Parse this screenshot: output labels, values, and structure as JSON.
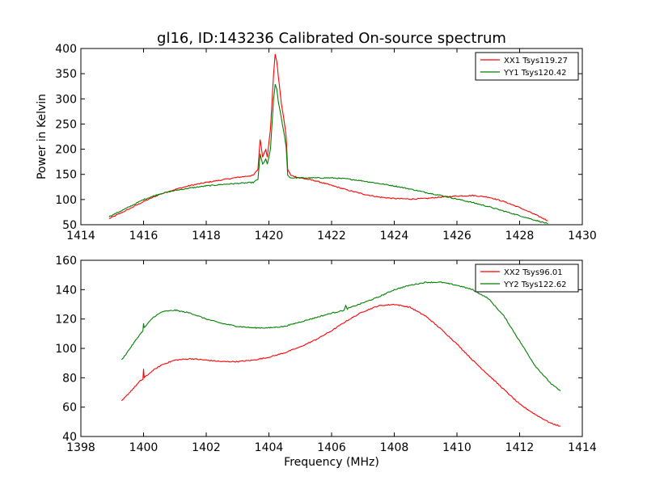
{
  "title": "gl16, ID:143236 Calibrated On-source spectrum",
  "chart_data": [
    {
      "type": "line",
      "title": "gl16, ID:143236 Calibrated On-source spectrum",
      "xlabel": "",
      "ylabel": "Power in Kelvin",
      "xlim": [
        1414,
        1430
      ],
      "ylim": [
        50,
        400
      ],
      "xticks": [
        1414,
        1416,
        1418,
        1420,
        1422,
        1424,
        1426,
        1428,
        1430
      ],
      "yticks": [
        50,
        100,
        150,
        200,
        250,
        300,
        350,
        400
      ],
      "legend_position": "top-right",
      "series": [
        {
          "name": "XX1 Tsys119.27",
          "color": "#ff0000",
          "x": [
            1414.9,
            1415.5,
            1416.0,
            1416.5,
            1417.0,
            1417.5,
            1418.0,
            1418.5,
            1419.0,
            1419.5,
            1419.65,
            1419.72,
            1419.8,
            1419.9,
            1419.95,
            1420.05,
            1420.15,
            1420.2,
            1420.25,
            1420.3,
            1420.4,
            1420.5,
            1420.55,
            1420.6,
            1420.7,
            1421.0,
            1421.5,
            1422.0,
            1422.5,
            1423.0,
            1423.5,
            1424.0,
            1424.5,
            1425.0,
            1425.5,
            1426.0,
            1426.5,
            1427.0,
            1427.5,
            1428.0,
            1428.5,
            1428.9
          ],
          "values": [
            62,
            80,
            96,
            110,
            120,
            128,
            134,
            139,
            144,
            148,
            160,
            220,
            185,
            200,
            185,
            240,
            350,
            388,
            375,
            345,
            290,
            250,
            225,
            160,
            148,
            143,
            137,
            128,
            119,
            111,
            105,
            102,
            101,
            102,
            105,
            107,
            108,
            105,
            96,
            84,
            70,
            58
          ]
        },
        {
          "name": "YY1 Tsys120.42",
          "color": "#008000",
          "x": [
            1414.9,
            1415.5,
            1416.0,
            1416.5,
            1417.0,
            1417.5,
            1418.0,
            1418.5,
            1419.0,
            1419.5,
            1419.65,
            1419.72,
            1419.8,
            1419.9,
            1419.95,
            1420.05,
            1420.15,
            1420.2,
            1420.25,
            1420.3,
            1420.4,
            1420.5,
            1420.55,
            1420.6,
            1420.7,
            1421.0,
            1421.5,
            1422.0,
            1422.5,
            1423.0,
            1423.5,
            1424.0,
            1424.5,
            1425.0,
            1425.5,
            1426.0,
            1426.5,
            1427.0,
            1427.5,
            1428.0,
            1428.5,
            1428.9
          ],
          "values": [
            66,
            84,
            100,
            111,
            118,
            123,
            127,
            130,
            132,
            134,
            140,
            190,
            170,
            180,
            170,
            200,
            300,
            328,
            320,
            295,
            260,
            225,
            205,
            148,
            143,
            143,
            143,
            143,
            141,
            137,
            132,
            127,
            121,
            114,
            108,
            101,
            94,
            86,
            77,
            68,
            59,
            52
          ]
        }
      ]
    },
    {
      "type": "line",
      "title": "",
      "xlabel": "Frequency (MHz)",
      "ylabel": "",
      "xlim": [
        1398,
        1414
      ],
      "ylim": [
        40,
        160
      ],
      "xticks": [
        1398,
        1400,
        1402,
        1404,
        1406,
        1408,
        1410,
        1412,
        1414
      ],
      "yticks": [
        40,
        60,
        80,
        100,
        120,
        140,
        160
      ],
      "legend_position": "top-right",
      "series": [
        {
          "name": "XX2 Tsys96.01",
          "color": "#ff0000",
          "x": [
            1399.3,
            1399.6,
            1399.9,
            1399.98,
            1400.0,
            1400.02,
            1400.3,
            1400.6,
            1401.0,
            1401.5,
            1402.0,
            1402.5,
            1403.0,
            1403.5,
            1404.0,
            1404.5,
            1405.0,
            1405.5,
            1406.0,
            1406.5,
            1407.0,
            1407.5,
            1408.0,
            1408.5,
            1409.0,
            1409.5,
            1410.0,
            1410.5,
            1411.0,
            1411.5,
            1412.0,
            1412.5,
            1413.0,
            1413.3
          ],
          "values": [
            64,
            71,
            78,
            79,
            86,
            80,
            85,
            89,
            92,
            93,
            92,
            91,
            91,
            92,
            94,
            97,
            101,
            106,
            112,
            119,
            125,
            129,
            130,
            128,
            122,
            113,
            103,
            92,
            82,
            72,
            62,
            55,
            49,
            47
          ]
        },
        {
          "name": "YY2 Tsys122.62",
          "color": "#008000",
          "x": [
            1399.3,
            1399.6,
            1399.9,
            1399.98,
            1400.0,
            1400.02,
            1400.3,
            1400.6,
            1401.0,
            1401.5,
            1402.0,
            1402.5,
            1403.0,
            1403.5,
            1404.0,
            1404.5,
            1405.0,
            1405.5,
            1406.0,
            1406.4,
            1406.45,
            1406.5,
            1407.0,
            1407.5,
            1408.0,
            1408.5,
            1409.0,
            1409.5,
            1410.0,
            1410.5,
            1411.0,
            1411.5,
            1412.0,
            1412.5,
            1413.0,
            1413.3
          ],
          "values": [
            92,
            101,
            110,
            112,
            117,
            114,
            121,
            125,
            126,
            124,
            120,
            117,
            115,
            114,
            114,
            115,
            118,
            121,
            124,
            126,
            129,
            127,
            131,
            135,
            140,
            143,
            145,
            145,
            143,
            140,
            134,
            122,
            105,
            88,
            76,
            71
          ]
        }
      ]
    }
  ]
}
